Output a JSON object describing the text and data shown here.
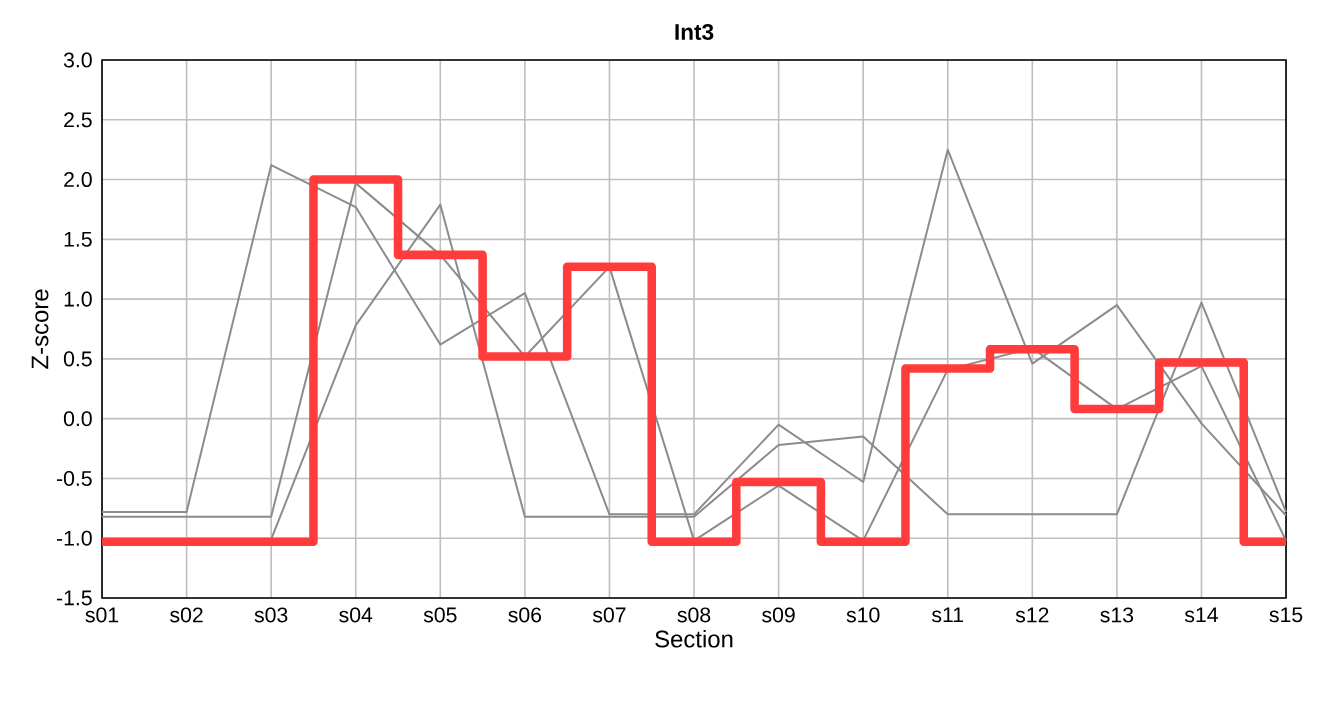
{
  "chart_data": {
    "type": "line",
    "title": "Int3",
    "xlabel": "Section",
    "ylabel": "Z-score",
    "categories": [
      "s01",
      "s02",
      "s03",
      "s04",
      "s05",
      "s06",
      "s07",
      "s08",
      "s09",
      "s10",
      "s11",
      "s12",
      "s13",
      "s14",
      "s15"
    ],
    "series": [
      {
        "color": "#8c8c8c",
        "values": [
          -0.78,
          -0.78,
          2.12,
          1.77,
          0.62,
          1.05,
          -0.8,
          -0.8,
          -0.05,
          -0.53,
          2.25,
          0.46,
          0.95,
          -0.04,
          -0.81
        ]
      },
      {
        "color": "#8c8c8c",
        "values": [
          -0.82,
          -0.82,
          -0.82,
          1.97,
          1.37,
          0.52,
          1.27,
          -1.02,
          -0.56,
          -1.02,
          0.41,
          0.59,
          0.08,
          0.44,
          -1.02
        ]
      },
      {
        "color": "#8c8c8c",
        "values": [
          null,
          null,
          -1.01,
          0.78,
          1.79,
          -0.82,
          -0.82,
          -0.82,
          -0.22,
          -0.15,
          -0.8,
          -0.8,
          -0.8,
          0.97,
          -0.78
        ]
      },
      {
        "type": "step",
        "color": "#ff3b3b",
        "values": [
          -1.03,
          -1.03,
          -1.03,
          2.0,
          1.37,
          0.52,
          1.27,
          -1.03,
          -0.53,
          -1.03,
          0.42,
          0.58,
          0.08,
          0.47,
          -1.03
        ]
      }
    ],
    "ylim": [
      -1.5,
      3.0
    ],
    "yticks": [
      {
        "value": -1.5,
        "label": "-1.5"
      },
      {
        "value": -1,
        "label": "-1.0"
      },
      {
        "value": -0.5,
        "label": "-0.5"
      },
      {
        "value": 0,
        "label": "0.0"
      },
      {
        "value": 0.5,
        "label": "0.5"
      },
      {
        "value": 1,
        "label": "1.0"
      },
      {
        "value": 1.5,
        "label": "1.5"
      },
      {
        "value": 2,
        "label": "2.0"
      },
      {
        "value": 2.5,
        "label": "2.5"
      },
      {
        "value": 3,
        "label": "3.0"
      }
    ],
    "grid": true,
    "marker": "none",
    "line_style": "solid"
  }
}
